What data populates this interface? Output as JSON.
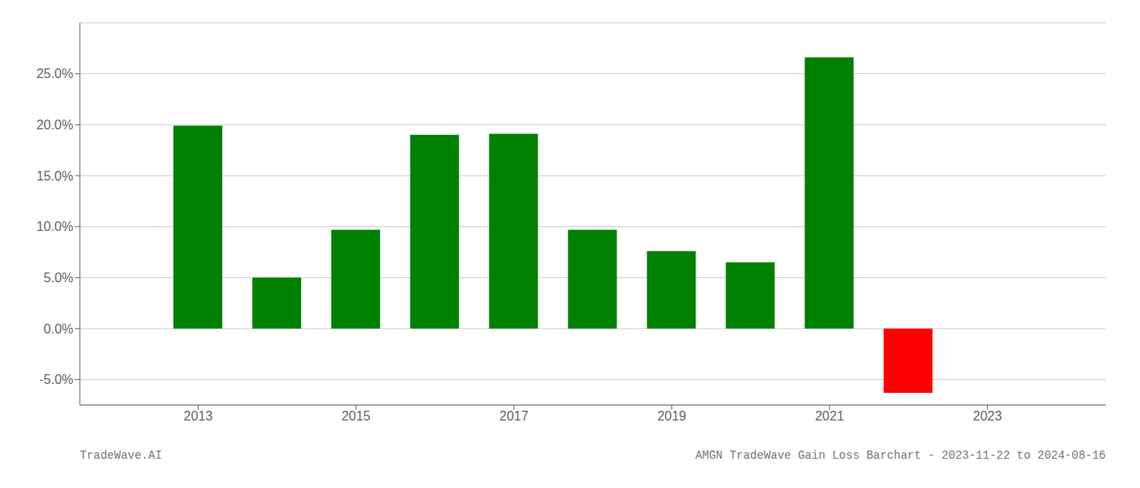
{
  "chart_data": {
    "type": "bar",
    "x": [
      2013,
      2014,
      2015,
      2016,
      2017,
      2018,
      2019,
      2020,
      2021,
      2022
    ],
    "values": [
      0.199,
      0.05,
      0.097,
      0.19,
      0.191,
      0.097,
      0.076,
      0.065,
      0.266,
      -0.063
    ],
    "colors": [
      "#008000",
      "#008000",
      "#008000",
      "#008000",
      "#008000",
      "#008000",
      "#008000",
      "#008000",
      "#008000",
      "#ff0000"
    ],
    "xlim": [
      2011.5,
      2024.5
    ],
    "xticks": [
      2013,
      2015,
      2017,
      2019,
      2021,
      2023
    ],
    "ylim": [
      -0.075,
      0.3
    ],
    "yticks": [
      {
        "value": -0.05,
        "label": "-5.0%"
      },
      {
        "value": 0.0,
        "label": "0.0%"
      },
      {
        "value": 0.05,
        "label": "5.0%"
      },
      {
        "value": 0.1,
        "label": "10.0%"
      },
      {
        "value": 0.15,
        "label": "15.0%"
      },
      {
        "value": 0.2,
        "label": "20.0%"
      },
      {
        "value": 0.25,
        "label": "25.0%"
      }
    ],
    "grid": "y",
    "annotations": [
      "TradeWave.AI",
      "AMGN TradeWave Gain Loss Barchart - 2023-11-22 to 2024-08-16"
    ]
  }
}
